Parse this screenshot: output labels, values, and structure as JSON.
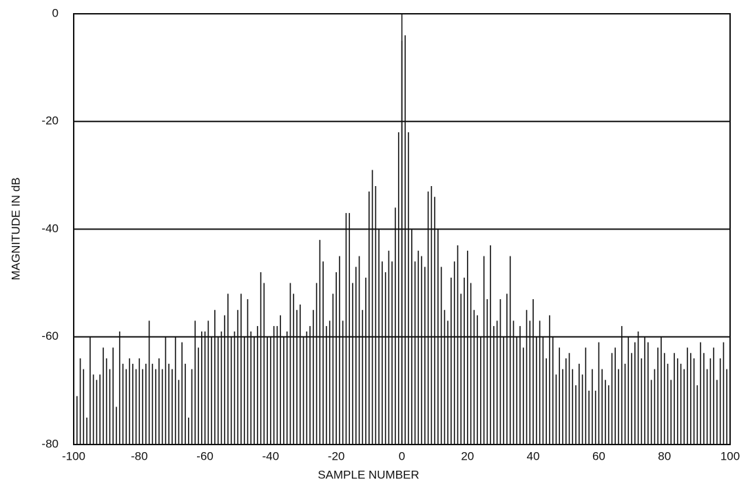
{
  "chart_data": {
    "type": "stem",
    "x_label": "SAMPLE NUMBER",
    "y_label": "MAGNITUDE IN dB",
    "x": [
      -100,
      -99,
      -98,
      -97,
      -96,
      -95,
      -94,
      -93,
      -92,
      -91,
      -90,
      -89,
      -88,
      -87,
      -86,
      -85,
      -84,
      -83,
      -82,
      -81,
      -80,
      -79,
      -78,
      -77,
      -76,
      -75,
      -74,
      -73,
      -72,
      -71,
      -70,
      -69,
      -68,
      -67,
      -66,
      -65,
      -64,
      -63,
      -62,
      -61,
      -60,
      -59,
      -58,
      -57,
      -56,
      -55,
      -54,
      -53,
      -52,
      -51,
      -50,
      -49,
      -48,
      -47,
      -46,
      -45,
      -44,
      -43,
      -42,
      -41,
      -40,
      -39,
      -38,
      -37,
      -36,
      -35,
      -34,
      -33,
      -32,
      -31,
      -30,
      -29,
      -28,
      -27,
      -26,
      -25,
      -24,
      -23,
      -22,
      -21,
      -20,
      -19,
      -18,
      -17,
      -16,
      -15,
      -14,
      -13,
      -12,
      -11,
      -10,
      -9,
      -8,
      -7,
      -6,
      -5,
      -4,
      -3,
      -2,
      -1,
      0,
      1,
      2,
      3,
      4,
      5,
      6,
      7,
      8,
      9,
      10,
      11,
      12,
      13,
      14,
      15,
      16,
      17,
      18,
      19,
      20,
      21,
      22,
      23,
      24,
      25,
      26,
      27,
      28,
      29,
      30,
      31,
      32,
      33,
      34,
      35,
      36,
      37,
      38,
      39,
      40,
      41,
      42,
      43,
      44,
      45,
      46,
      47,
      48,
      49,
      50,
      51,
      52,
      53,
      54,
      55,
      56,
      57,
      58,
      59,
      60,
      61,
      62,
      63,
      64,
      65,
      66,
      67,
      68,
      69,
      70,
      71,
      72,
      73,
      74,
      75,
      76,
      77,
      78,
      79,
      80,
      81,
      82,
      83,
      84,
      85,
      86,
      87,
      88,
      89,
      90,
      91,
      92,
      93,
      94,
      95,
      96,
      97,
      98,
      99,
      100
    ],
    "values": [
      -61,
      -71,
      -64,
      -66,
      -75,
      -60,
      -67,
      -68,
      -67,
      -62,
      -64,
      -66,
      -62,
      -73,
      -59,
      -65,
      -66,
      -64,
      -65,
      -66,
      -64,
      -66,
      -65,
      -57,
      -65,
      -66,
      -64,
      -66,
      -60,
      -65,
      -66,
      -60,
      -68,
      -61,
      -65,
      -75,
      -66,
      -57,
      -62,
      -59,
      -59,
      -57,
      -60,
      -55,
      -60,
      -59,
      -56,
      -52,
      -60,
      -59,
      -55,
      -52,
      -60,
      -53,
      -59,
      -60,
      -58,
      -48,
      -50,
      -60,
      -60,
      -58,
      -58,
      -56,
      -60,
      -59,
      -50,
      -52,
      -55,
      -54,
      -60,
      -59,
      -58,
      -55,
      -50,
      -42,
      -46,
      -58,
      -57,
      -52,
      -48,
      -45,
      -57,
      -37,
      -37,
      -50,
      -47,
      -45,
      -55,
      -49,
      -33,
      -29,
      -32,
      -40,
      -46,
      -48,
      -44,
      -46,
      -36,
      -22,
      -5,
      -4,
      -22,
      -40,
      -46,
      -44,
      -45,
      -47,
      -33,
      -32,
      -34,
      -40,
      -47,
      -55,
      -57,
      -49,
      -46,
      -43,
      -52,
      -49,
      -44,
      -50,
      -55,
      -56,
      -60,
      -45,
      -53,
      -43,
      -58,
      -57,
      -53,
      -60,
      -52,
      -45,
      -57,
      -60,
      -58,
      -62,
      -55,
      -57,
      -53,
      -60,
      -57,
      -60,
      -64,
      -56,
      -60,
      -67,
      -62,
      -66,
      -64,
      -63,
      -66,
      -69,
      -65,
      -67,
      -62,
      -70,
      -66,
      -70,
      -61,
      -66,
      -68,
      -69,
      -63,
      -62,
      -66,
      -58,
      -65,
      -60,
      -63,
      -61,
      -59,
      -64,
      -60,
      -61,
      -68,
      -66,
      -62,
      -60,
      -63,
      -65,
      -68,
      -63,
      -64,
      -65,
      -66,
      -62,
      -63,
      -64,
      -69,
      -61,
      -63,
      -66,
      -64,
      -62,
      -68,
      -64,
      -61,
      -66,
      -62
    ],
    "color": "#111111",
    "xlim": [
      -100,
      100
    ],
    "xticks": [
      -100,
      -80,
      -60,
      -40,
      -20,
      0,
      20,
      40,
      60,
      80,
      100
    ],
    "ylim": [
      -80,
      0
    ],
    "yticks": [
      0,
      -20,
      -40,
      -60,
      -80
    ],
    "grid": true
  }
}
